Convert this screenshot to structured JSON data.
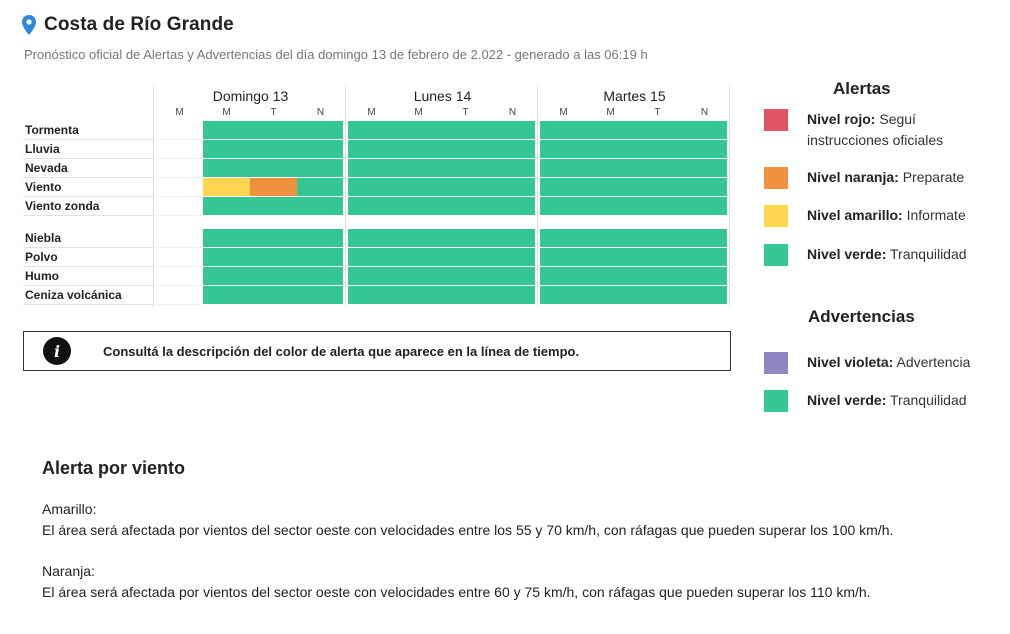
{
  "header": {
    "title": "Costa de Río Grande",
    "pin_icon": "location-pin-icon",
    "pin_color": "#2e86de",
    "subtitle": "Pronóstico oficial de Alertas y Advertencias del día domingo 13 de febrero de 2.022 - generado a las 06:19 h"
  },
  "timeline": {
    "days": [
      {
        "label": "Domingo 13",
        "slots": [
          "M",
          "M",
          "T",
          "N"
        ]
      },
      {
        "label": "Lunes 14",
        "slots": [
          "M",
          "M",
          "T",
          "N"
        ]
      },
      {
        "label": "Martes 15",
        "slots": [
          "M",
          "M",
          "T",
          "N"
        ]
      }
    ],
    "rows": [
      {
        "label": "Tormenta",
        "levels": [
          null,
          "green",
          "green",
          "green",
          "green",
          "green",
          "green",
          "green",
          "green",
          "green",
          "green",
          "green"
        ]
      },
      {
        "label": "Lluvia",
        "levels": [
          null,
          "green",
          "green",
          "green",
          "green",
          "green",
          "green",
          "green",
          "green",
          "green",
          "green",
          "green"
        ]
      },
      {
        "label": "Nevada",
        "levels": [
          null,
          "green",
          "green",
          "green",
          "green",
          "green",
          "green",
          "green",
          "green",
          "green",
          "green",
          "green"
        ]
      },
      {
        "label": "Viento",
        "levels": [
          null,
          "yellow",
          "orange",
          "green",
          "green",
          "green",
          "green",
          "green",
          "green",
          "green",
          "green",
          "green"
        ]
      },
      {
        "label": "Viento zonda",
        "levels": [
          null,
          "green",
          "green",
          "green",
          "green",
          "green",
          "green",
          "green",
          "green",
          "green",
          "green",
          "green"
        ]
      },
      {
        "label": "Niebla",
        "levels": [
          null,
          "green",
          "green",
          "green",
          "green",
          "green",
          "green",
          "green",
          "green",
          "green",
          "green",
          "green"
        ]
      },
      {
        "label": "Polvo",
        "levels": [
          null,
          "green",
          "green",
          "green",
          "green",
          "green",
          "green",
          "green",
          "green",
          "green",
          "green",
          "green"
        ]
      },
      {
        "label": "Humo",
        "levels": [
          null,
          "green",
          "green",
          "green",
          "green",
          "green",
          "green",
          "green",
          "green",
          "green",
          "green",
          "green"
        ]
      },
      {
        "label": "Ceniza volcánica",
        "levels": [
          null,
          "green",
          "green",
          "green",
          "green",
          "green",
          "green",
          "green",
          "green",
          "green",
          "green",
          "green"
        ]
      }
    ],
    "colors": {
      "green": "#34c794",
      "yellow": "#ffd54f",
      "orange": "#f2913d"
    }
  },
  "info_box": {
    "icon": "info-icon",
    "icon_glyph": "i",
    "text": "Consultá la descripción del color de alerta que aparece en la línea de tiempo."
  },
  "legend": {
    "alerts_title": "Alertas",
    "alerts": [
      {
        "name": "Nivel rojo:",
        "desc": "Seguí instrucciones oficiales",
        "color": "#e05563"
      },
      {
        "name": "Nivel naranja:",
        "desc": "Preparate",
        "color": "#f2913d"
      },
      {
        "name": "Nivel amarillo:",
        "desc": "Informate",
        "color": "#ffd54f"
      },
      {
        "name": "Nivel verde:",
        "desc": "Tranquilidad",
        "color": "#34c794"
      }
    ],
    "warnings_title": "Advertencias",
    "warnings": [
      {
        "name": "Nivel violeta:",
        "desc": "Advertencia",
        "color": "#8e87c4"
      },
      {
        "name": "Nivel verde:",
        "desc": "Tranquilidad",
        "color": "#34c794"
      }
    ]
  },
  "alert_detail": {
    "title": "Alerta por viento",
    "items": [
      {
        "level": "Amarillo:",
        "text": "El área será afectada por vientos del sector oeste con velocidades entre los 55 y 70 km/h, con ráfagas que pueden superar los 100 km/h."
      },
      {
        "level": "Naranja:",
        "text": "El área será afectada por vientos del sector oeste con velocidades entre 60 y 75 km/h, con ráfagas que pueden superar los 110 km/h."
      }
    ]
  }
}
